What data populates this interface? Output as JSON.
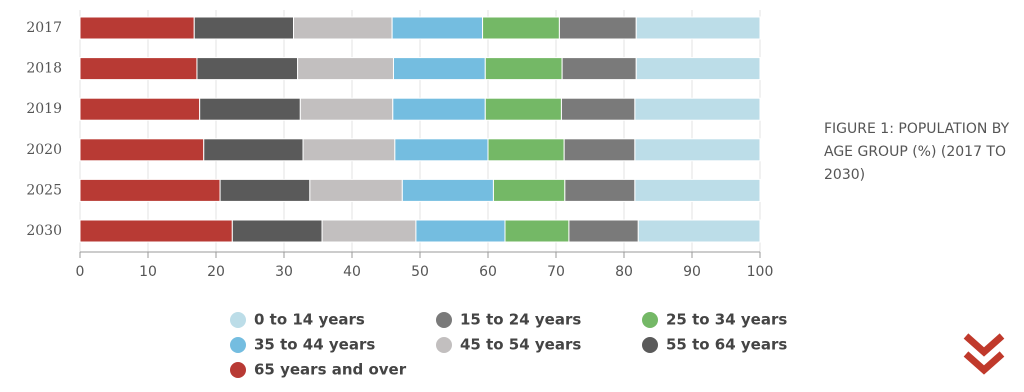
{
  "chart_data": {
    "type": "stacked-bar-horizontal",
    "title": "FIGURE 1: POPULATION BY AGE GROUP (%) (2017 TO 2030)",
    "categories": [
      "2017",
      "2018",
      "2019",
      "2020",
      "2025",
      "2030"
    ],
    "series": [
      {
        "name": "0 to 14 years",
        "color": "#bcdde8",
        "values": [
          18.2,
          18.2,
          18.4,
          18.4,
          18.4,
          17.9
        ]
      },
      {
        "name": "15 to 24 years",
        "color": "#7a7a7a",
        "values": [
          11.3,
          10.9,
          10.8,
          10.4,
          10.3,
          10.2
        ]
      },
      {
        "name": "25 to 34 years",
        "color": "#74b866",
        "values": [
          11.3,
          11.3,
          11.2,
          11.2,
          10.5,
          9.4
        ]
      },
      {
        "name": "35 to 44 years",
        "color": "#74bde0",
        "values": [
          13.3,
          13.5,
          13.6,
          13.7,
          13.4,
          13.1
        ]
      },
      {
        "name": "45 to 54 years",
        "color": "#c2bfbf",
        "values": [
          14.5,
          14.1,
          13.6,
          13.5,
          13.6,
          13.8
        ]
      },
      {
        "name": "55 to 64 years",
        "color": "#5a5a5a",
        "values": [
          14.6,
          14.8,
          14.8,
          14.6,
          13.2,
          13.2
        ]
      },
      {
        "name": "65 years and over",
        "color": "#b83a34",
        "values": [
          16.8,
          17.2,
          17.6,
          18.2,
          20.6,
          22.4
        ]
      }
    ],
    "xlim": [
      0,
      100
    ],
    "xticks": [
      0,
      10,
      20,
      30,
      40,
      50,
      60,
      70,
      80,
      90,
      100
    ],
    "grid": true
  }
}
